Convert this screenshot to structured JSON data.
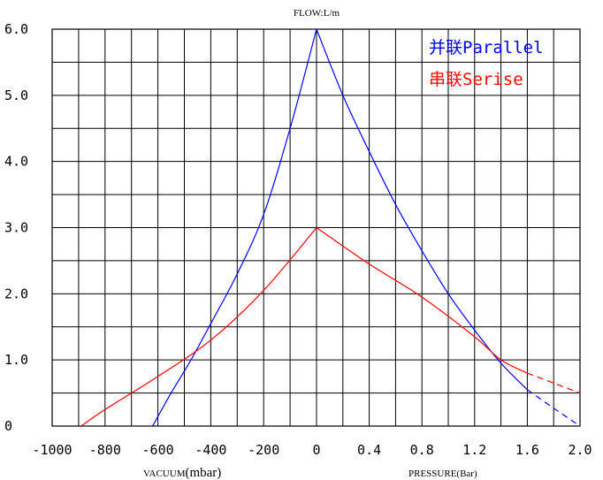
{
  "chart_data": {
    "type": "line",
    "title": "FLOW:L/m",
    "y_axis": {
      "label": "FLOW:L/m",
      "ylim": [
        0,
        6
      ],
      "tick_labels": [
        "0",
        "1.0",
        "2.0",
        "3.0",
        "4.0",
        "5.0",
        "6.0"
      ],
      "grid_step": 0.5
    },
    "x_axis_vacuum": {
      "label_prefix": "VACUUM",
      "label_unit": "(mbar)",
      "range": [
        -1000,
        0
      ],
      "tick_labels": [
        "-1000",
        "-800",
        "-600",
        "-400",
        "-200",
        "0"
      ]
    },
    "x_axis_pressure": {
      "label": "PRESSURE(Bar)",
      "range": [
        0,
        2.0
      ],
      "tick_labels": [
        "0.4",
        "0.8",
        "1.2",
        "1.6",
        "2.0"
      ]
    },
    "grid": true,
    "legend": {
      "placement": "top-right",
      "entries": [
        {
          "label": "并联Parallel",
          "color": "#0000ff"
        },
        {
          "label": "串联Serise",
          "color": "#ff0000"
        }
      ]
    },
    "series": [
      {
        "name": "并联Parallel",
        "color": "#0000ff",
        "vacuum_points": [
          [
            -620,
            0
          ],
          [
            -550,
            0.5
          ],
          [
            -475,
            1.0
          ],
          [
            -400,
            1.55
          ],
          [
            -300,
            2.3
          ],
          [
            -200,
            3.2
          ],
          [
            -100,
            4.5
          ],
          [
            0,
            6.0
          ]
        ],
        "pressure_points": [
          [
            0,
            6.0
          ],
          [
            0.2,
            5.0
          ],
          [
            0.4,
            4.15
          ],
          [
            0.6,
            3.35
          ],
          [
            0.8,
            2.65
          ],
          [
            1.0,
            2.0
          ],
          [
            1.2,
            1.45
          ],
          [
            1.4,
            0.95
          ],
          [
            1.6,
            0.55
          ]
        ],
        "pressure_extrapolated": [
          [
            1.6,
            0.55
          ],
          [
            1.8,
            0.27
          ],
          [
            2.0,
            0.0
          ]
        ]
      },
      {
        "name": "串联Serise",
        "color": "#ff0000",
        "vacuum_points": [
          [
            -890,
            0
          ],
          [
            -800,
            0.25
          ],
          [
            -600,
            0.75
          ],
          [
            -400,
            1.3
          ],
          [
            -200,
            2.05
          ],
          [
            0,
            3.0
          ]
        ],
        "pressure_points": [
          [
            0,
            3.0
          ],
          [
            0.4,
            2.45
          ],
          [
            0.8,
            1.95
          ],
          [
            1.2,
            1.35
          ],
          [
            1.4,
            1.0
          ],
          [
            1.6,
            0.8
          ]
        ],
        "pressure_extrapolated": [
          [
            1.6,
            0.8
          ],
          [
            1.8,
            0.65
          ],
          [
            2.0,
            0.5
          ]
        ]
      }
    ]
  }
}
